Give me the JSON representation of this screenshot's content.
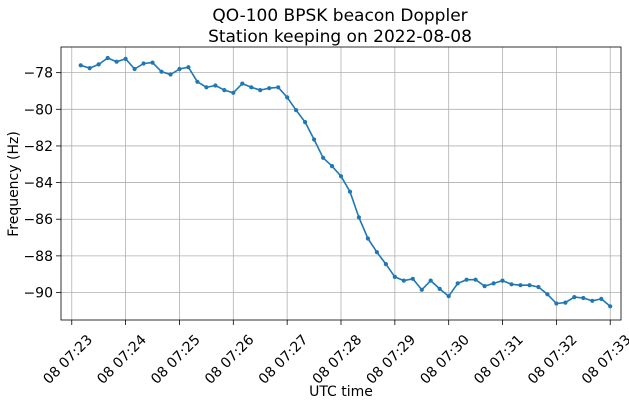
{
  "chart_data": {
    "type": "line",
    "title_lines": [
      "QO-100 BPSK beacon Doppler",
      "Station keeping on 2022-08-08"
    ],
    "xlabel": "UTC time",
    "ylabel": "Frequency (Hz)",
    "grid": true,
    "legend": "none",
    "xlim": [
      "2022-08-08T07:22:48",
      "2022-08-08T07:33:12"
    ],
    "ylim": [
      -91.5,
      -76.6
    ],
    "x_ticks": [
      {
        "value": "2022-08-08T07:23:00",
        "label": "08 07:23"
      },
      {
        "value": "2022-08-08T07:24:00",
        "label": "08 07:24"
      },
      {
        "value": "2022-08-08T07:25:00",
        "label": "08 07:25"
      },
      {
        "value": "2022-08-08T07:26:00",
        "label": "08 07:26"
      },
      {
        "value": "2022-08-08T07:27:00",
        "label": "08 07:27"
      },
      {
        "value": "2022-08-08T07:28:00",
        "label": "08 07:28"
      },
      {
        "value": "2022-08-08T07:29:00",
        "label": "08 07:29"
      },
      {
        "value": "2022-08-08T07:30:00",
        "label": "08 07:30"
      },
      {
        "value": "2022-08-08T07:31:00",
        "label": "08 07:31"
      },
      {
        "value": "2022-08-08T07:32:00",
        "label": "08 07:32"
      },
      {
        "value": "2022-08-08T07:33:00",
        "label": "08 07:33"
      }
    ],
    "y_ticks": [
      {
        "value": -78,
        "label": "−78"
      },
      {
        "value": -80,
        "label": "−80"
      },
      {
        "value": -82,
        "label": "−82"
      },
      {
        "value": -84,
        "label": "−84"
      },
      {
        "value": -86,
        "label": "−86"
      },
      {
        "value": -88,
        "label": "−88"
      },
      {
        "value": -90,
        "label": "−90"
      }
    ],
    "series": [
      {
        "color": "#1f77b4",
        "marker": "dot",
        "x": [
          "2022-08-08T07:23:10",
          "2022-08-08T07:23:20",
          "2022-08-08T07:23:30",
          "2022-08-08T07:23:40",
          "2022-08-08T07:23:50",
          "2022-08-08T07:24:00",
          "2022-08-08T07:24:10",
          "2022-08-08T07:24:20",
          "2022-08-08T07:24:30",
          "2022-08-08T07:24:40",
          "2022-08-08T07:24:50",
          "2022-08-08T07:25:00",
          "2022-08-08T07:25:10",
          "2022-08-08T07:25:20",
          "2022-08-08T07:25:30",
          "2022-08-08T07:25:40",
          "2022-08-08T07:25:50",
          "2022-08-08T07:26:00",
          "2022-08-08T07:26:10",
          "2022-08-08T07:26:20",
          "2022-08-08T07:26:30",
          "2022-08-08T07:26:40",
          "2022-08-08T07:26:50",
          "2022-08-08T07:27:00",
          "2022-08-08T07:27:10",
          "2022-08-08T07:27:20",
          "2022-08-08T07:27:30",
          "2022-08-08T07:27:40",
          "2022-08-08T07:27:50",
          "2022-08-08T07:28:00",
          "2022-08-08T07:28:10",
          "2022-08-08T07:28:20",
          "2022-08-08T07:28:30",
          "2022-08-08T07:28:40",
          "2022-08-08T07:28:50",
          "2022-08-08T07:29:00",
          "2022-08-08T07:29:10",
          "2022-08-08T07:29:20",
          "2022-08-08T07:29:30",
          "2022-08-08T07:29:40",
          "2022-08-08T07:29:50",
          "2022-08-08T07:30:00",
          "2022-08-08T07:30:10",
          "2022-08-08T07:30:20",
          "2022-08-08T07:30:30",
          "2022-08-08T07:30:40",
          "2022-08-08T07:30:50",
          "2022-08-08T07:31:00",
          "2022-08-08T07:31:10",
          "2022-08-08T07:31:20",
          "2022-08-08T07:31:30",
          "2022-08-08T07:31:40",
          "2022-08-08T07:31:50",
          "2022-08-08T07:32:00",
          "2022-08-08T07:32:10",
          "2022-08-08T07:32:20",
          "2022-08-08T07:32:30",
          "2022-08-08T07:32:40",
          "2022-08-08T07:32:50",
          "2022-08-08T07:33:00"
        ],
        "y": [
          -77.6,
          -77.75,
          -77.55,
          -77.2,
          -77.4,
          -77.25,
          -77.8,
          -77.5,
          -77.45,
          -77.95,
          -78.1,
          -77.8,
          -77.7,
          -78.5,
          -78.8,
          -78.7,
          -78.95,
          -79.1,
          -78.6,
          -78.8,
          -78.95,
          -78.85,
          -78.8,
          -79.35,
          -80.05,
          -80.7,
          -81.65,
          -82.65,
          -83.1,
          -83.65,
          -84.5,
          -85.9,
          -87.05,
          -87.8,
          -88.45,
          -89.15,
          -89.35,
          -89.25,
          -89.85,
          -89.35,
          -89.8,
          -90.2,
          -89.5,
          -89.3,
          -89.3,
          -89.65,
          -89.5,
          -89.35,
          -89.55,
          -89.6,
          -89.6,
          -89.7,
          -90.1,
          -90.6,
          -90.55,
          -90.25,
          -90.3,
          -90.45,
          -90.35,
          -90.75
        ]
      }
    ]
  }
}
